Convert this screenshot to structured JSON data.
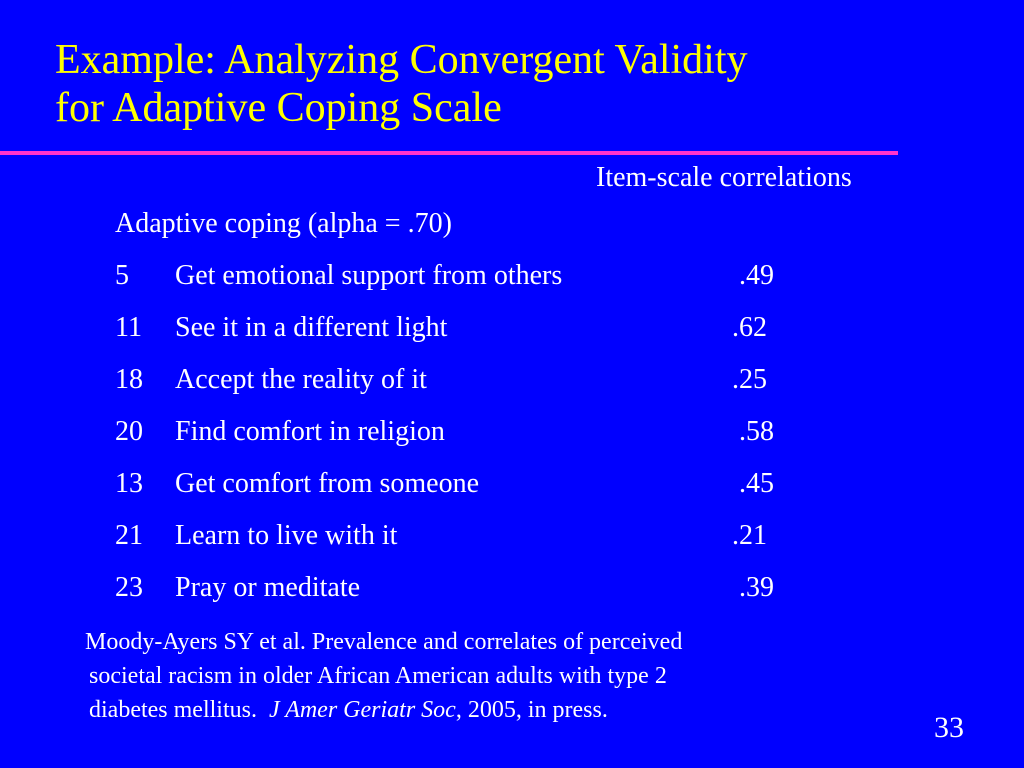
{
  "slide": {
    "title_line1": "Example: Analyzing Convergent Validity",
    "title_line2": "for Adaptive Coping Scale",
    "column_header": "Item-scale correlations",
    "subheading": "Adaptive coping (alpha = .70)",
    "items": [
      {
        "num": "5",
        "text": "Get emotional support from others",
        "corr": ".49"
      },
      {
        "num": "11",
        "text": "See it in a different light",
        "corr": ".62"
      },
      {
        "num": "18",
        "text": "Accept the reality of it",
        "corr": ".25"
      },
      {
        "num": "20",
        "text": "Find comfort in religion",
        "corr": ".58"
      },
      {
        "num": "13",
        "text": "Get comfort from someone",
        "corr": ".45"
      },
      {
        "num": "21",
        "text": "Learn to live with it",
        "corr": ".21"
      },
      {
        "num": "23",
        "text": "Pray or meditate",
        "corr": ".39"
      }
    ],
    "citation": {
      "line1": "Moody-Ayers SY et al. Prevalence and correlates of perceived",
      "line2": "societal racism in older African American adults with type 2",
      "line3_pre": "diabetes mellitus.  ",
      "line3_journal": "J Amer Geriatr Soc",
      "line3_post": ", 2005, in press."
    },
    "page_number": "33"
  },
  "colors": {
    "background": "#0000FF",
    "title": "#FFFF00",
    "rule": "#FF33CC",
    "text": "#FFFFFF"
  }
}
